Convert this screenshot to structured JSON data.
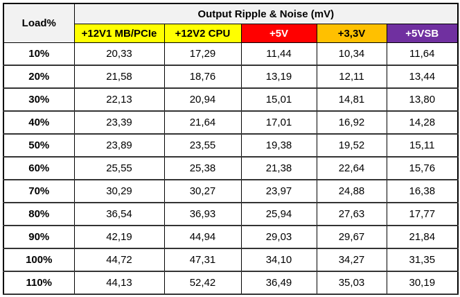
{
  "table": {
    "corner": "Load%",
    "title": "Output Ripple & Noise (mV)",
    "columns": [
      {
        "label": "+12V1 MB/PCIe",
        "color": "#ffff00",
        "text_color": "#000000"
      },
      {
        "label": "+12V2 CPU",
        "color": "#ffff00",
        "text_color": "#000000"
      },
      {
        "label": "+5V",
        "color": "#ff0000",
        "text_color": "#ffffff"
      },
      {
        "label": "+3,3V",
        "color": "#ffc000",
        "text_color": "#000000"
      },
      {
        "label": "+5VSB",
        "color": "#7030a0",
        "text_color": "#ffffff"
      }
    ],
    "rows": [
      [
        "10%",
        "20,33",
        "17,29",
        "11,44",
        "10,34",
        "11,64"
      ],
      [
        "20%",
        "21,58",
        "18,76",
        "13,19",
        "12,11",
        "13,44"
      ],
      [
        "30%",
        "22,13",
        "20,94",
        "15,01",
        "14,81",
        "13,80"
      ],
      [
        "40%",
        "23,39",
        "21,64",
        "17,01",
        "16,92",
        "14,28"
      ],
      [
        "50%",
        "23,89",
        "23,55",
        "19,38",
        "19,52",
        "15,11"
      ],
      [
        "60%",
        "25,55",
        "25,38",
        "21,38",
        "22,64",
        "15,76"
      ],
      [
        "70%",
        "30,29",
        "30,27",
        "23,97",
        "24,88",
        "16,38"
      ],
      [
        "80%",
        "36,54",
        "36,93",
        "25,94",
        "27,63",
        "17,77"
      ],
      [
        "90%",
        "42,19",
        "44,94",
        "29,03",
        "29,67",
        "21,84"
      ],
      [
        "100%",
        "44,72",
        "47,31",
        "34,10",
        "34,27",
        "31,35"
      ],
      [
        "110%",
        "44,13",
        "52,42",
        "36,49",
        "35,03",
        "30,19"
      ]
    ]
  }
}
